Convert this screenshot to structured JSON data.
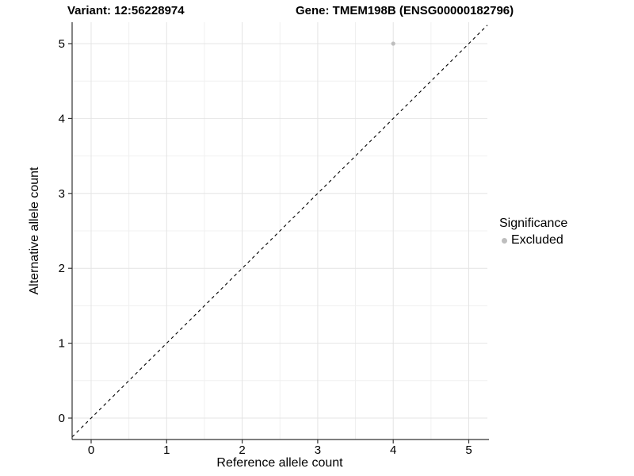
{
  "chart_data": {
    "type": "scatter",
    "titles": {
      "left": "Variant: 12:56228974",
      "right": "Gene: TMEM198B (ENSG00000182796)"
    },
    "xlabel": "Reference allele count",
    "ylabel": "Alternative allele count",
    "x_ticks": [
      0,
      1,
      2,
      3,
      4,
      5
    ],
    "y_ticks": [
      0,
      1,
      2,
      3,
      4,
      5
    ],
    "xlim": [
      -0.25,
      5.25
    ],
    "ylim": [
      -0.29,
      5.28
    ],
    "grid": {
      "major": true,
      "minor": true,
      "minor_step": 0.5
    },
    "series": [
      {
        "name": "Excluded",
        "color": "#bebebe",
        "points": [
          [
            4,
            5
          ]
        ]
      }
    ],
    "reference_line": {
      "kind": "identity",
      "slope": 1,
      "intercept": 0,
      "style": "dashed",
      "color": "#000000"
    },
    "legend": {
      "title": "Significance",
      "position": "right",
      "entries": [
        {
          "label": "Excluded",
          "color": "#bebebe",
          "marker": "circle"
        }
      ]
    }
  },
  "colors": {
    "background": "#ffffff",
    "grid_major": "#e4e4e4",
    "grid_minor": "#f0f0f0",
    "axis_line": "#333333",
    "tick_mark": "#333333",
    "tick_label": "#000000",
    "point": "#bebebe",
    "dashed_line": "#000000"
  }
}
